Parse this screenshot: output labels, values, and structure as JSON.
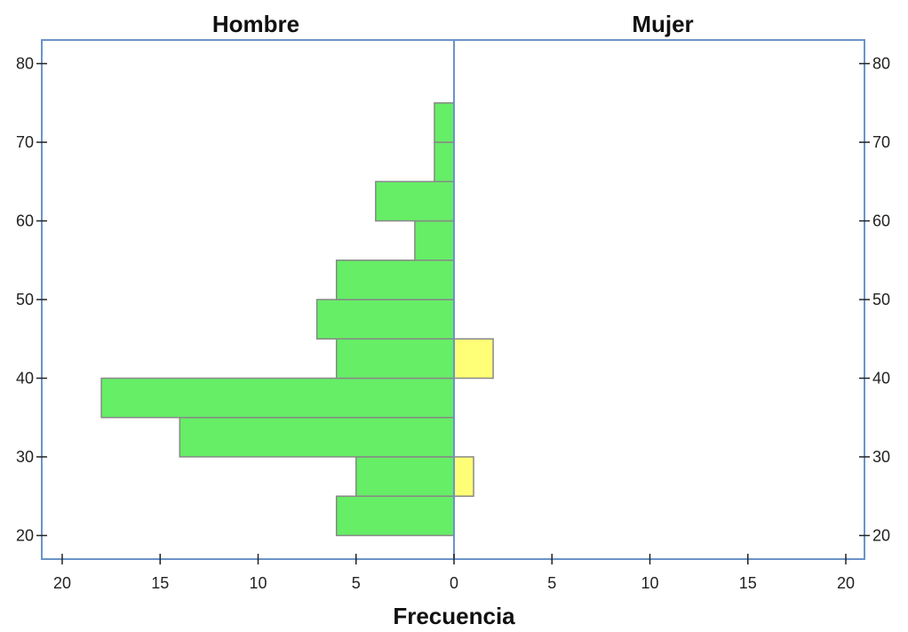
{
  "chart_data": {
    "type": "bar",
    "orientation": "horizontal",
    "subtype": "population-pyramid",
    "xlabel": "Frecuencia",
    "xlim": [
      0,
      20
    ],
    "x_ticks": [
      "20",
      "15",
      "10",
      "5",
      "0",
      "5",
      "10",
      "15",
      "20"
    ],
    "ylim": [
      17,
      83
    ],
    "y_ticks": [
      "20",
      "30",
      "40",
      "50",
      "60",
      "70",
      "80"
    ],
    "bin_edges": [
      20,
      25,
      30,
      35,
      40,
      45,
      50,
      55,
      60,
      65,
      70,
      75
    ],
    "grid": false,
    "series": [
      {
        "name": "Hombre",
        "side": "left",
        "color": "#66ee66",
        "values": [
          6,
          5,
          14,
          18,
          6,
          7,
          6,
          2,
          4,
          1,
          1
        ]
      },
      {
        "name": "Mujer",
        "side": "right",
        "color": "#ffff77",
        "values": [
          0,
          1,
          0,
          0,
          2,
          0,
          0,
          0,
          0,
          0,
          0
        ]
      }
    ]
  },
  "style": {
    "axis_color": "#6a94c8",
    "bar_stroke": "#888888",
    "tick_color": "#222222"
  }
}
